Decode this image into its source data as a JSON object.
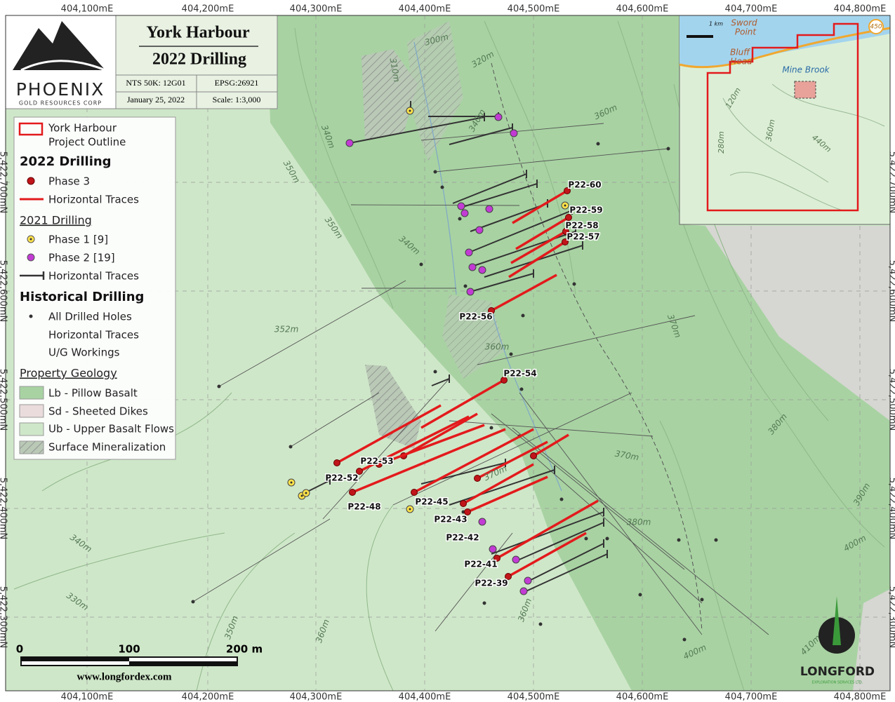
{
  "header": {
    "company": "PHOENIX",
    "company_sub": "GOLD RESOURCES CORP",
    "title_line1": "York Harbour",
    "title_line2": "2022 Drilling",
    "nts": "NTS 50K: 12G01",
    "epsg": "EPSG:26921",
    "date": "January 25, 2022",
    "scale": "Scale: 1:3,000"
  },
  "grid": {
    "eastings": [
      "404,100mE",
      "404,200mE",
      "404,300mE",
      "404,400mE",
      "404,500mE",
      "404,600mE",
      "404,700mE",
      "404,800mE"
    ],
    "northings": [
      "5,422,700mN",
      "5,422,600mN",
      "5,422,500mN",
      "5,422,400mN",
      "5,422,300mN"
    ]
  },
  "legend": {
    "outline_line1": "York Harbour",
    "outline_line2": "Project Outline",
    "heading_2022": "2022 Drilling",
    "phase3": "Phase 3",
    "traces_2022": "Horizontal Traces",
    "heading_2021": "2021 Drilling",
    "phase1": "Phase 1 [9]",
    "phase2": "Phase 2 [19]",
    "traces_2021": "Horizontal Traces",
    "heading_hist": "Historical Drilling",
    "all_holes": "All Drilled Holes",
    "traces_hist": "Horizontal Traces",
    "ug": "U/G Workings",
    "heading_geo": "Property Geology",
    "lb": "Lb - Pillow Basalt",
    "sd": "Sd - Sheeted Dikes",
    "ub": "Ub - Upper Basalt Flows",
    "min": "Surface Mineralization"
  },
  "holes": [
    "P22-60",
    "P22-59",
    "P22-58",
    "P22-57",
    "P22-56",
    "P22-54",
    "P22-53",
    "P22-52",
    "P22-48",
    "P22-45",
    "P22-43",
    "P22-42",
    "P22-41",
    "P22-39"
  ],
  "contours": [
    "300m",
    "310m",
    "320m",
    "340m",
    "340m",
    "360m",
    "350m",
    "350m",
    "340m",
    "352m",
    "360m",
    "370m",
    "380m",
    "370m",
    "370m",
    "380m",
    "390m",
    "400m",
    "340m",
    "330m",
    "350m",
    "360m",
    "360m",
    "400m",
    "410m"
  ],
  "scale_bar": {
    "zero": "0",
    "mid": "100",
    "end": "200 m"
  },
  "website": "www.longfordex.com",
  "logo": {
    "name": "LONGFORD",
    "sub": "EXPLORATION SERVICES LTD."
  },
  "inset": {
    "labels": [
      "Sword",
      "Point",
      "Bluff",
      "Head",
      "Mine Brook",
      "1 km",
      "450",
      "120m",
      "280m",
      "360m",
      "440m"
    ]
  }
}
